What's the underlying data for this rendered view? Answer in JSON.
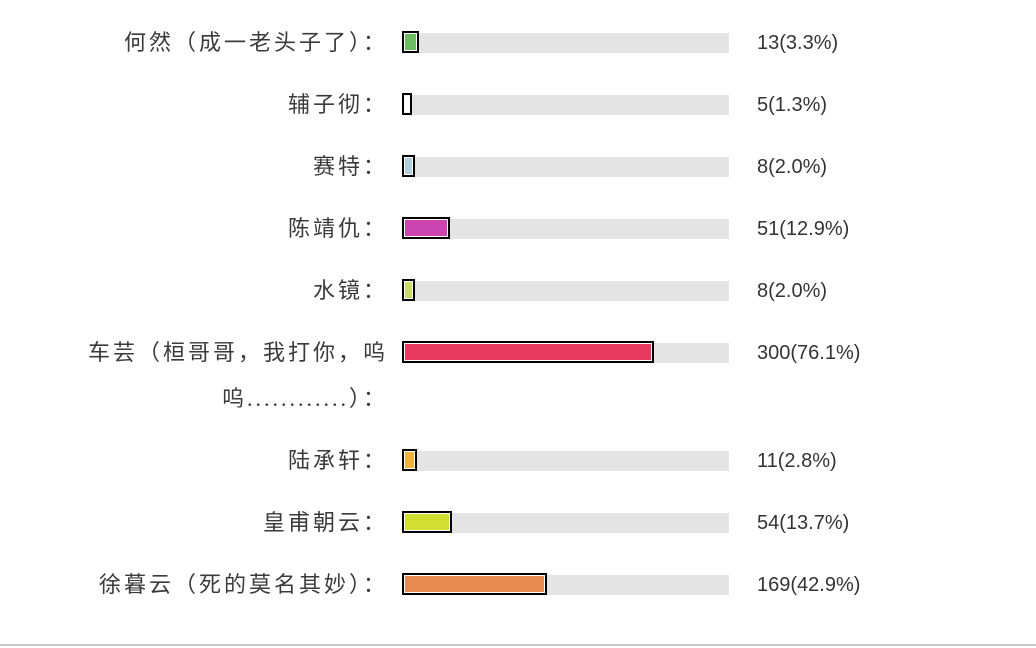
{
  "poll": {
    "track_color": "#e4e4e4",
    "bar_border_color": "#000000",
    "divider_color": "#c9c9c9",
    "rows": [
      {
        "label": "何然（成一老头子了）：",
        "votes": 13,
        "percent": 3.3,
        "display": "13(3.3%)",
        "color": "#6cbd62"
      },
      {
        "label": "辅子彻：",
        "votes": 5,
        "percent": 1.3,
        "display": "5(1.3%)",
        "color": "#ffffff"
      },
      {
        "label": "赛特：",
        "votes": 8,
        "percent": 2.0,
        "display": "8(2.0%)",
        "color": "#aecfdb"
      },
      {
        "label": "陈靖仇：",
        "votes": 51,
        "percent": 12.9,
        "display": "51(12.9%)",
        "color": "#cb44b2"
      },
      {
        "label": "水镜：",
        "votes": 8,
        "percent": 2.0,
        "display": "8(2.0%)",
        "color": "#c9dc64"
      },
      {
        "label": "车芸（桓哥哥，我打你，呜\n呜............）：",
        "votes": 300,
        "percent": 76.1,
        "display": "300(76.1%)",
        "color": "#e73a5e"
      },
      {
        "label": "陆承轩：",
        "votes": 11,
        "percent": 2.8,
        "display": "11(2.8%)",
        "color": "#f0b23a"
      },
      {
        "label": "皇甫朝云：",
        "votes": 54,
        "percent": 13.7,
        "display": "54(13.7%)",
        "color": "#d2df31"
      },
      {
        "label": "徐暮云（死的莫名其妙）：",
        "votes": 169,
        "percent": 42.9,
        "display": "169(42.9%)",
        "color": "#e78a50"
      }
    ]
  },
  "chart_data": {
    "type": "bar",
    "orientation": "horizontal",
    "title": "",
    "categories": [
      "何然（成一老头子了）",
      "辅子彻",
      "赛特",
      "陈靖仇",
      "水镜",
      "车芸（桓哥哥，我打你，呜呜............）",
      "陆承轩",
      "皇甫朝云",
      "徐暮云（死的莫名其妙）"
    ],
    "values": [
      13,
      5,
      8,
      51,
      8,
      300,
      11,
      54,
      169
    ],
    "percents": [
      3.3,
      1.3,
      2.0,
      12.9,
      2.0,
      76.1,
      2.8,
      13.7,
      42.9
    ],
    "value_labels": [
      "13(3.3%)",
      "5(1.3%)",
      "8(2.0%)",
      "51(12.9%)",
      "8(2.0%)",
      "300(76.1%)",
      "11(2.8%)",
      "54(13.7%)",
      "169(42.9%)"
    ],
    "bar_colors": [
      "#6cbd62",
      "#ffffff",
      "#aecfdb",
      "#cb44b2",
      "#c9dc64",
      "#e73a5e",
      "#f0b23a",
      "#d2df31",
      "#e78a50"
    ],
    "track_color": "#e4e4e4",
    "xlabel": "",
    "ylabel": "",
    "legend": false,
    "grid": false,
    "notes": "bars scaled relative to max value 300; black 2px border with 1px white padding around each fill"
  }
}
